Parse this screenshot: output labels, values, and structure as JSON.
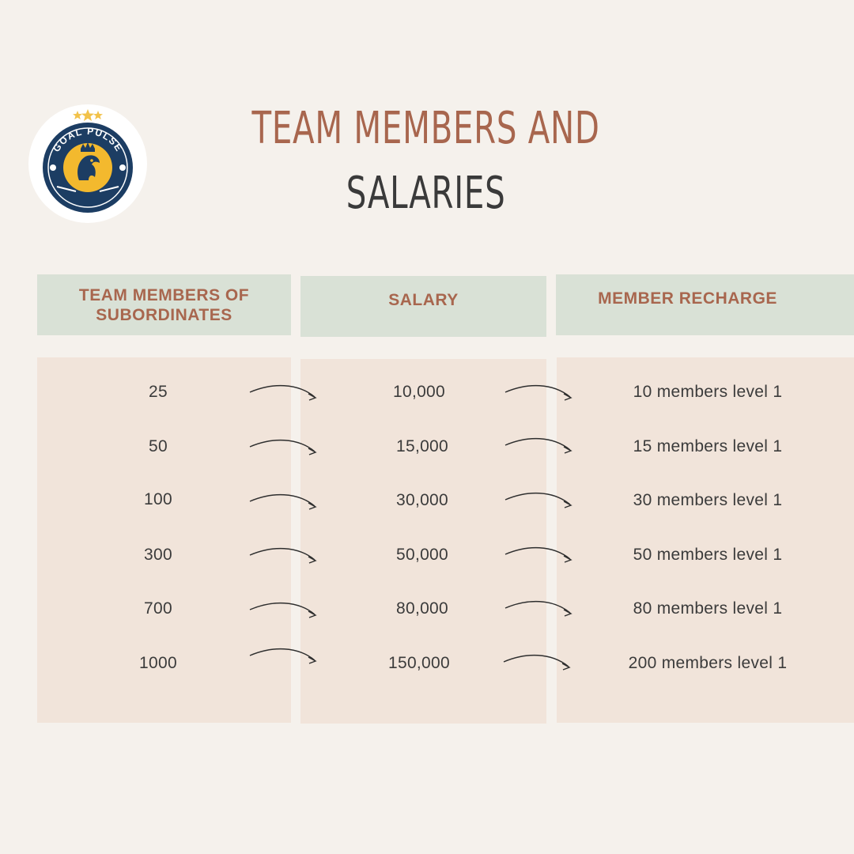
{
  "brand": {
    "logo_text": "GOAL PULSE",
    "colors": {
      "navy": "#1c3d63",
      "gold": "#f3b92e",
      "star": "#f2c24a"
    }
  },
  "title": {
    "line1": "TEAM MEMBERS AND",
    "line2": "SALARIES"
  },
  "columns": [
    {
      "label": "TEAM MEMBERS OF\nSUBORDINATES"
    },
    {
      "label": "SALARY"
    },
    {
      "label": "MEMBER RECHARGE"
    }
  ],
  "rows": [
    {
      "members": "25",
      "salary": "10,000",
      "recharge": "10 members  level 1"
    },
    {
      "members": "50",
      "salary": "15,000",
      "recharge": "15 members level 1"
    },
    {
      "members": "100",
      "salary": "30,000",
      "recharge": "30 members level 1"
    },
    {
      "members": "300",
      "salary": "50,000",
      "recharge": "50 members level 1"
    },
    {
      "members": "700",
      "salary": "80,000",
      "recharge": "80 members level 1"
    },
    {
      "members": "1000",
      "salary": "150,000",
      "recharge": "200 members level 1"
    }
  ]
}
